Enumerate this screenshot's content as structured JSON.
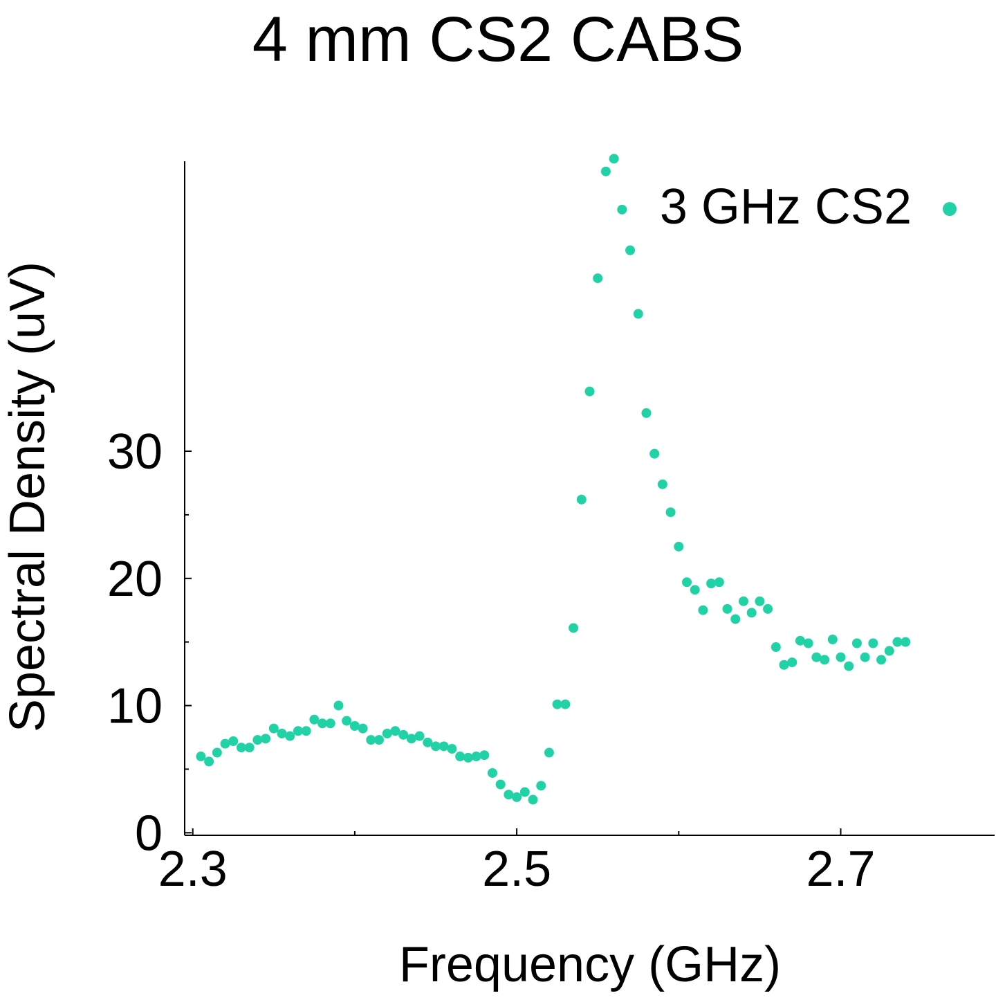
{
  "chart_data": {
    "type": "scatter",
    "title": "4 mm CS2 CABS",
    "xlabel": "Frequency (GHz)",
    "ylabel": "Spectral Density (uV)",
    "xlim": [
      2.295,
      2.795
    ],
    "ylim": [
      -0.2,
      52.8
    ],
    "x_ticks": [
      2.3,
      2.5,
      2.7
    ],
    "x_minor_ticks": [
      2.4,
      2.6,
      2.8
    ],
    "y_ticks": [
      0,
      10,
      20,
      30
    ],
    "y_minor_ticks": [
      5,
      15,
      25
    ],
    "grid": false,
    "legend_position": "top-right",
    "series": [
      {
        "name": "3 GHz CS2",
        "color": "#20d2a5",
        "marker": "circle",
        "points": [
          [
            2.305,
            6.0
          ],
          [
            2.31,
            5.6
          ],
          [
            2.315,
            6.3
          ],
          [
            2.32,
            7.0
          ],
          [
            2.325,
            7.2
          ],
          [
            2.33,
            6.7
          ],
          [
            2.335,
            6.7
          ],
          [
            2.34,
            7.3
          ],
          [
            2.345,
            7.4
          ],
          [
            2.35,
            8.2
          ],
          [
            2.355,
            7.8
          ],
          [
            2.36,
            7.6
          ],
          [
            2.365,
            8.0
          ],
          [
            2.37,
            8.0
          ],
          [
            2.375,
            8.9
          ],
          [
            2.38,
            8.6
          ],
          [
            2.385,
            8.6
          ],
          [
            2.39,
            10.0
          ],
          [
            2.395,
            8.8
          ],
          [
            2.4,
            8.4
          ],
          [
            2.405,
            8.2
          ],
          [
            2.41,
            7.3
          ],
          [
            2.415,
            7.3
          ],
          [
            2.42,
            7.8
          ],
          [
            2.425,
            8.0
          ],
          [
            2.43,
            7.7
          ],
          [
            2.435,
            7.4
          ],
          [
            2.44,
            7.6
          ],
          [
            2.445,
            7.1
          ],
          [
            2.45,
            6.8
          ],
          [
            2.455,
            6.8
          ],
          [
            2.46,
            6.6
          ],
          [
            2.465,
            6.0
          ],
          [
            2.47,
            5.9
          ],
          [
            2.475,
            6.0
          ],
          [
            2.48,
            6.1
          ],
          [
            2.485,
            4.7
          ],
          [
            2.49,
            3.8
          ],
          [
            2.495,
            3.0
          ],
          [
            2.5,
            2.8
          ],
          [
            2.505,
            3.2
          ],
          [
            2.51,
            2.6
          ],
          [
            2.515,
            3.7
          ],
          [
            2.52,
            6.3
          ],
          [
            2.525,
            10.1
          ],
          [
            2.53,
            10.1
          ],
          [
            2.535,
            16.1
          ],
          [
            2.54,
            26.2
          ],
          [
            2.545,
            34.7
          ],
          [
            2.55,
            43.6
          ],
          [
            2.555,
            52.0
          ],
          [
            2.56,
            53.0
          ],
          [
            2.565,
            49.0
          ],
          [
            2.57,
            45.8
          ],
          [
            2.575,
            40.8
          ],
          [
            2.58,
            33.0
          ],
          [
            2.585,
            29.8
          ],
          [
            2.59,
            27.4
          ],
          [
            2.595,
            25.2
          ],
          [
            2.6,
            22.5
          ],
          [
            2.605,
            19.7
          ],
          [
            2.61,
            19.1
          ],
          [
            2.615,
            17.5
          ],
          [
            2.62,
            19.6
          ],
          [
            2.625,
            19.7
          ],
          [
            2.63,
            17.6
          ],
          [
            2.635,
            16.8
          ],
          [
            2.64,
            18.2
          ],
          [
            2.645,
            17.3
          ],
          [
            2.65,
            18.2
          ],
          [
            2.655,
            17.6
          ],
          [
            2.66,
            14.6
          ],
          [
            2.665,
            13.2
          ],
          [
            2.67,
            13.4
          ],
          [
            2.675,
            15.1
          ],
          [
            2.68,
            14.9
          ],
          [
            2.685,
            13.8
          ],
          [
            2.69,
            13.6
          ],
          [
            2.695,
            15.2
          ],
          [
            2.7,
            13.8
          ],
          [
            2.705,
            13.1
          ],
          [
            2.71,
            14.9
          ],
          [
            2.715,
            13.8
          ],
          [
            2.72,
            14.9
          ],
          [
            2.725,
            13.6
          ],
          [
            2.73,
            14.3
          ],
          [
            2.735,
            15.0
          ],
          [
            2.74,
            15.0
          ]
        ]
      }
    ]
  }
}
